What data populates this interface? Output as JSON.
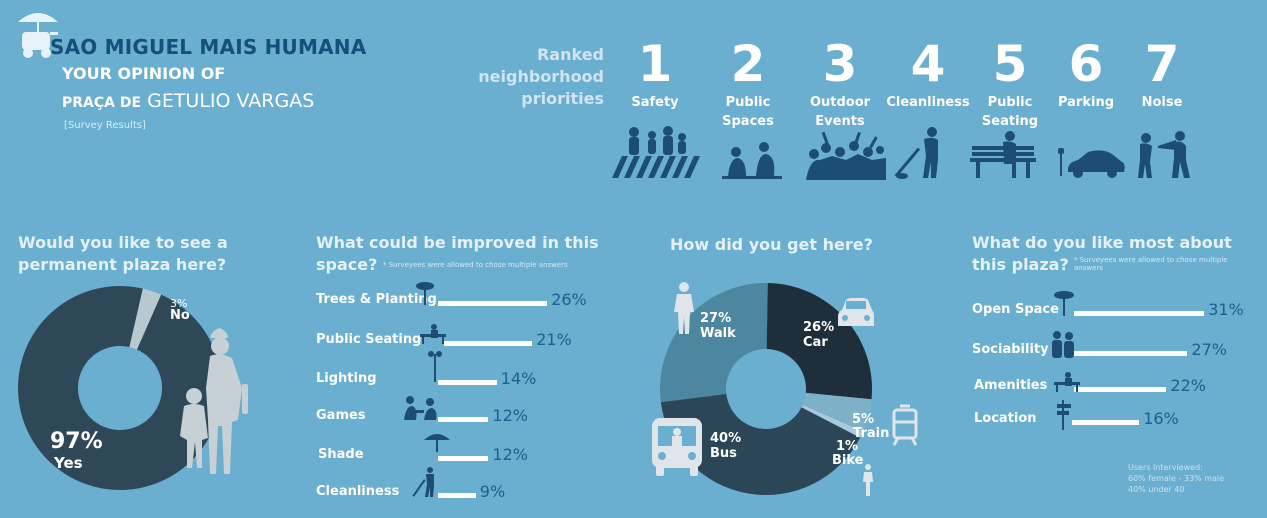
{
  "header": {
    "title": "SAO MIGUEL MAIS HUMANA",
    "subtitle": "YOUR OPINION OF",
    "plaza_prefix": "PRAÇA DE",
    "plaza_name": "GETULIO VARGAS",
    "note": "[Survey Results]"
  },
  "ranked": {
    "heading_line1": "Ranked",
    "heading_line2": "neighborhood",
    "heading_line3": "priorities",
    "items": [
      {
        "rank": "1",
        "line1": "Safety",
        "line2": "",
        "icon": "crosswalk-people-icon"
      },
      {
        "rank": "2",
        "line1": "Public",
        "line2": "Spaces",
        "icon": "people-sitting-icon"
      },
      {
        "rank": "3",
        "line1": "Outdoor",
        "line2": "Events",
        "icon": "crowd-icon"
      },
      {
        "rank": "4",
        "line1": "Cleanliness",
        "line2": "",
        "icon": "sweeper-icon"
      },
      {
        "rank": "5",
        "line1": "Public",
        "line2": "Seating",
        "icon": "bench-icon"
      },
      {
        "rank": "6",
        "line1": "Parking",
        "line2": "",
        "icon": "car-meter-icon"
      },
      {
        "rank": "7",
        "line1": "Noise",
        "line2": "",
        "icon": "megaphone-icon"
      }
    ]
  },
  "q1": {
    "line1": "Would you like to see a",
    "line2": "permanent plaza here?",
    "yes_pct": "97%",
    "yes_label": "Yes",
    "no_pct": "3%",
    "no_label": "No"
  },
  "q2": {
    "line1": "What could be improved in this",
    "line2": "space?",
    "footnote": "* Surveyees were allowed to chose multiple answers",
    "items": [
      {
        "label": "Trees & Planting",
        "pct": "26%",
        "icon": "tree-icon"
      },
      {
        "label": "Public Seating",
        "pct": "21%",
        "icon": "bench-person-icon"
      },
      {
        "label": "Lighting",
        "pct": "14%",
        "icon": "streetlight-icon"
      },
      {
        "label": "Games",
        "pct": "12%",
        "icon": "game-players-icon"
      },
      {
        "label": "Shade",
        "pct": "12%",
        "icon": "umbrella-icon"
      },
      {
        "label": "Cleanliness",
        "pct": "9%",
        "icon": "sweeper-icon"
      }
    ]
  },
  "q3": {
    "title": "How did you get here?",
    "walk_pct": "27%",
    "walk_label": "Walk",
    "car_pct": "26%",
    "car_label": "Car",
    "train_pct": "5%",
    "train_label": "Train",
    "bike_pct": "1%",
    "bike_label": "Bike",
    "bus_pct": "40%",
    "bus_label": "Bus"
  },
  "q4": {
    "line1": "What do you like most about",
    "line2": "this plaza?",
    "footnote_line1": "* Surveyees were allowed to chose multiple",
    "footnote_line2": "answers",
    "items": [
      {
        "label": "Open Space",
        "pct": "31%",
        "icon": "tree-icon"
      },
      {
        "label": "Sociability",
        "pct": "27%",
        "icon": "people-icon"
      },
      {
        "label": "Amenities",
        "pct": "22%",
        "icon": "bench-person-icon"
      },
      {
        "label": "Location",
        "pct": "16%",
        "icon": "signpost-icon"
      }
    ]
  },
  "users": {
    "line1": "Users Interviewed:",
    "line2": "60% female - 33% male",
    "line3": "40% under 40"
  },
  "colors": {
    "background": "#6aaed0",
    "dark_navy": "#1d4d73",
    "donut_dark": "#2f4858",
    "donut_light": "#b9c8cf",
    "walk_slice": "#4d869f",
    "bus_slice": "#2b4656",
    "car_slice": "#1e2e3b",
    "silhouette": "#c7d0d4"
  },
  "chart_data": [
    {
      "type": "pie",
      "title": "Would you like to see a permanent plaza here?",
      "categories": [
        "Yes",
        "No"
      ],
      "values": [
        97,
        3
      ]
    },
    {
      "type": "bar",
      "title": "What could be improved in this space?",
      "categories": [
        "Trees & Planting",
        "Public Seating",
        "Lighting",
        "Games",
        "Shade",
        "Cleanliness"
      ],
      "values": [
        26,
        21,
        14,
        12,
        12,
        9
      ]
    },
    {
      "type": "pie",
      "title": "How did you get here?",
      "categories": [
        "Walk",
        "Car",
        "Train",
        "Bike",
        "Bus"
      ],
      "values": [
        27,
        26,
        5,
        1,
        40
      ]
    },
    {
      "type": "bar",
      "title": "What do you like most about this plaza?",
      "categories": [
        "Open Space",
        "Sociability",
        "Amenities",
        "Location"
      ],
      "values": [
        31,
        27,
        22,
        16
      ]
    }
  ]
}
